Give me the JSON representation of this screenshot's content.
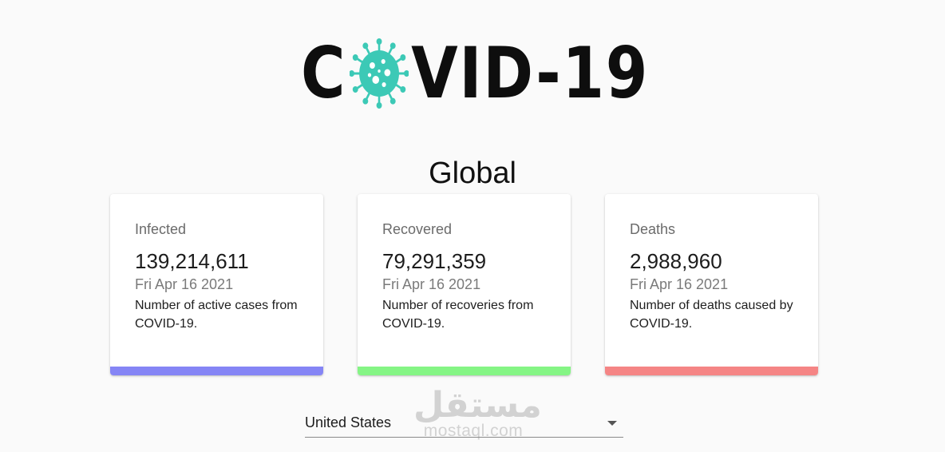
{
  "logo": {
    "text_before": "C",
    "text_after": "VID-19",
    "icon": "virus-icon",
    "icon_color": "#3cc9b6"
  },
  "global": {
    "title": "Global"
  },
  "cards": {
    "infected": {
      "label": "Infected",
      "value": "139,214,611",
      "date": "Fri Apr 16 2021",
      "description": "Number of active cases from COVID-19.",
      "color": "#8585f5"
    },
    "recovered": {
      "label": "Recovered",
      "value": "79,291,359",
      "date": "Fri Apr 16 2021",
      "description": "Number of recoveries from COVID-19.",
      "color": "#85f585"
    },
    "deaths": {
      "label": "Deaths",
      "value": "2,988,960",
      "date": "Fri Apr 16 2021",
      "description": "Number of deaths caused by COVID-19.",
      "color": "#f58585"
    }
  },
  "country_select": {
    "selected": "United States",
    "icon": "caret-down-icon"
  },
  "watermark": {
    "arabic": "مستقل",
    "latin": "mostaql.com"
  }
}
